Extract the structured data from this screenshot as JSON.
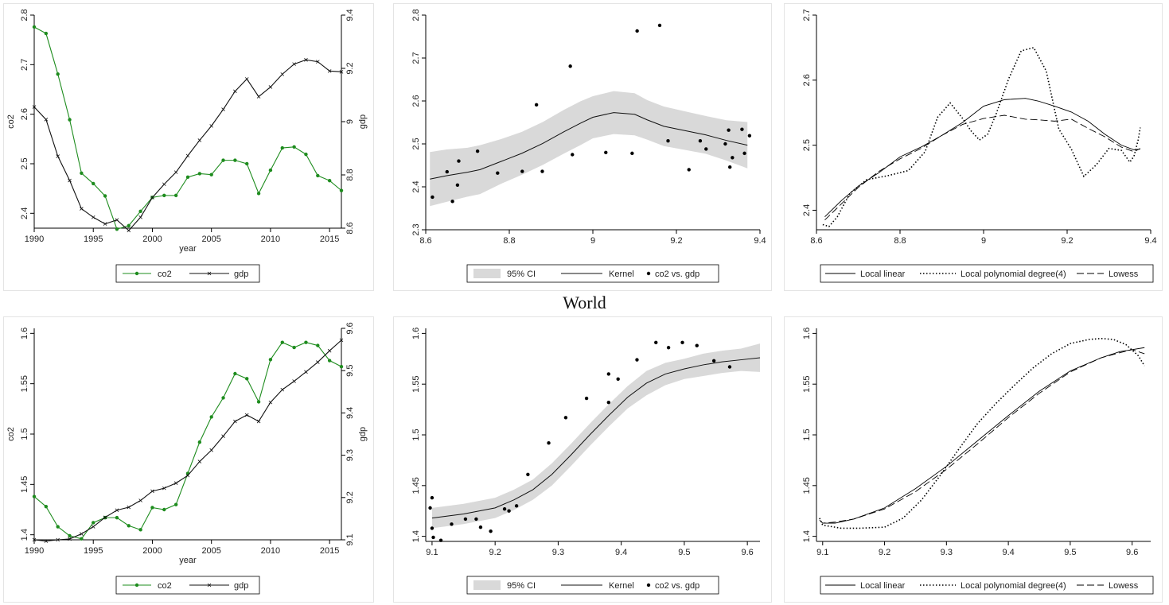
{
  "page_title": "World",
  "colors": {
    "co2": "#1e8c1e",
    "gdp": "#111111",
    "ci_band": "#d9d9d9",
    "fit": "#111111"
  },
  "chart_data": [
    {
      "id": "p1",
      "type": "line",
      "xlabel": "year",
      "ylabel": "co2",
      "y2label": "gdp",
      "xlim": [
        1990,
        2016
      ],
      "ylim": [
        2.37,
        2.8
      ],
      "y2lim": [
        8.6,
        9.4
      ],
      "xticks": [
        "1990",
        "1995",
        "2000",
        "2005",
        "2010",
        "2015"
      ],
      "yticks": [
        "2.4",
        "2.5",
        "2.6",
        "2.7",
        "2.8"
      ],
      "y2ticks": [
        "8.6",
        "8.8",
        "9",
        "9.2",
        "9.4"
      ],
      "x": [
        1990,
        1991,
        1992,
        1993,
        1994,
        1995,
        1996,
        1997,
        1998,
        1999,
        2000,
        2001,
        2002,
        2003,
        2004,
        2005,
        2006,
        2007,
        2008,
        2009,
        2010,
        2011,
        2012,
        2013,
        2014,
        2015,
        2016
      ],
      "series": [
        {
          "name": "co2",
          "axis": "left",
          "marker": "dot",
          "values": [
            2.776,
            2.763,
            2.681,
            2.589,
            2.481,
            2.46,
            2.435,
            2.368,
            2.375,
            2.404,
            2.432,
            2.436,
            2.436,
            2.473,
            2.48,
            2.478,
            2.507,
            2.507,
            2.5,
            2.44,
            2.487,
            2.532,
            2.534,
            2.519,
            2.476,
            2.466,
            2.446
          ]
        },
        {
          "name": "gdp",
          "axis": "right",
          "marker": "x",
          "values": [
            9.055,
            9.008,
            8.87,
            8.779,
            8.673,
            8.641,
            8.616,
            8.631,
            8.591,
            8.641,
            8.715,
            8.765,
            8.81,
            8.872,
            8.93,
            8.984,
            9.046,
            9.114,
            9.16,
            9.094,
            9.13,
            9.178,
            9.216,
            9.232,
            9.225,
            9.19,
            9.187
          ]
        }
      ],
      "legend": [
        "co2",
        "gdp"
      ],
      "legend_position": "bottom"
    },
    {
      "id": "p2",
      "type": "scatter",
      "xlim": [
        8.6,
        9.4
      ],
      "ylim": [
        2.3,
        2.8
      ],
      "xticks": [
        "8.6",
        "8.8",
        "9",
        "9.2",
        "9.4"
      ],
      "yticks": [
        "2.3",
        "2.4",
        "2.5",
        "2.6",
        "2.7",
        "2.8"
      ],
      "kernel_fit": {
        "x": [
          8.61,
          8.65,
          8.7,
          8.73,
          8.78,
          8.83,
          8.88,
          8.93,
          8.97,
          9.0,
          9.05,
          9.1,
          9.13,
          9.17,
          9.22,
          9.27,
          9.32,
          9.37
        ],
        "y": [
          2.418,
          2.426,
          2.434,
          2.44,
          2.459,
          2.478,
          2.501,
          2.528,
          2.548,
          2.562,
          2.573,
          2.569,
          2.556,
          2.541,
          2.531,
          2.521,
          2.508,
          2.497
        ],
        "ci_lower": [
          2.355,
          2.365,
          2.377,
          2.383,
          2.407,
          2.428,
          2.451,
          2.477,
          2.497,
          2.513,
          2.523,
          2.52,
          2.51,
          2.495,
          2.486,
          2.477,
          2.461,
          2.443
        ],
        "ci_upper": [
          2.481,
          2.487,
          2.491,
          2.497,
          2.511,
          2.528,
          2.551,
          2.579,
          2.599,
          2.611,
          2.623,
          2.618,
          2.602,
          2.587,
          2.576,
          2.565,
          2.555,
          2.551
        ]
      },
      "points": {
        "x": [
          8.616,
          8.651,
          8.664,
          8.676,
          8.679,
          8.724,
          8.772,
          8.831,
          8.865,
          8.879,
          8.946,
          8.951,
          9.031,
          9.094,
          9.106,
          9.16,
          9.18,
          9.23,
          9.257,
          9.271,
          9.317,
          9.325,
          9.328,
          9.334,
          9.357,
          9.363,
          9.375
        ],
        "y": [
          2.376,
          2.435,
          2.366,
          2.404,
          2.46,
          2.483,
          2.432,
          2.436,
          2.591,
          2.436,
          2.681,
          2.475,
          2.48,
          2.478,
          2.763,
          2.776,
          2.507,
          2.44,
          2.507,
          2.488,
          2.5,
          2.532,
          2.446,
          2.468,
          2.534,
          2.478,
          2.519
        ]
      },
      "legend": [
        "95% CI",
        "Kernel",
        "co2 vs. gdp"
      ],
      "legend_position": "bottom"
    },
    {
      "id": "p3",
      "type": "line",
      "xlim": [
        8.6,
        9.4
      ],
      "ylim": [
        2.37,
        2.7
      ],
      "xticks": [
        "8.6",
        "8.8",
        "9",
        "9.2",
        "9.4"
      ],
      "yticks": [
        "2.4",
        "2.5",
        "2.6",
        "2.7"
      ],
      "series": [
        {
          "name": "Local linear",
          "dash": "solid",
          "x": [
            8.62,
            8.66,
            8.7,
            8.75,
            8.8,
            8.85,
            8.9,
            8.95,
            9.0,
            9.05,
            9.1,
            9.13,
            9.17,
            9.21,
            9.25,
            9.29,
            9.33,
            9.36,
            9.375
          ],
          "y": [
            2.39,
            2.415,
            2.437,
            2.458,
            2.482,
            2.497,
            2.515,
            2.535,
            2.56,
            2.57,
            2.572,
            2.568,
            2.56,
            2.551,
            2.537,
            2.517,
            2.5,
            2.493,
            2.494
          ]
        },
        {
          "name": "Local polynomial degree(4)",
          "dash": "dot",
          "x": [
            8.615,
            8.63,
            8.65,
            8.68,
            8.72,
            8.77,
            8.82,
            8.86,
            8.89,
            8.92,
            8.95,
            8.97,
            8.99,
            9.01,
            9.03,
            9.06,
            9.09,
            9.12,
            9.15,
            9.18,
            9.21,
            9.24,
            9.27,
            9.3,
            9.33,
            9.35,
            9.36,
            9.37,
            9.375
          ],
          "y": [
            2.378,
            2.375,
            2.39,
            2.426,
            2.447,
            2.453,
            2.461,
            2.49,
            2.543,
            2.565,
            2.541,
            2.522,
            2.508,
            2.517,
            2.548,
            2.602,
            2.645,
            2.65,
            2.614,
            2.525,
            2.494,
            2.452,
            2.47,
            2.495,
            2.492,
            2.474,
            2.483,
            2.508,
            2.527
          ]
        },
        {
          "name": "Lowess",
          "dash": "dash",
          "x": [
            8.62,
            8.66,
            8.7,
            8.75,
            8.8,
            8.85,
            8.9,
            8.95,
            9.0,
            9.05,
            9.1,
            9.13,
            9.17,
            9.21,
            9.25,
            9.29,
            9.33,
            9.36,
            9.375
          ],
          "y": [
            2.385,
            2.41,
            2.435,
            2.46,
            2.479,
            2.495,
            2.515,
            2.532,
            2.541,
            2.546,
            2.54,
            2.539,
            2.537,
            2.54,
            2.526,
            2.513,
            2.497,
            2.49,
            2.495
          ]
        }
      ],
      "legend": [
        "Local linear",
        "Local polynomial degree(4)",
        "Lowess"
      ],
      "legend_position": "bottom"
    },
    {
      "id": "p4",
      "type": "line",
      "xlabel": "year",
      "ylabel": "co2",
      "y2label": "gdp",
      "xlim": [
        1990,
        2016
      ],
      "ylim": [
        1.395,
        1.605
      ],
      "y2lim": [
        9.1,
        9.6
      ],
      "xticks": [
        "1990",
        "1995",
        "2000",
        "2005",
        "2010",
        "2015"
      ],
      "yticks": [
        "1.4",
        "1.45",
        "1.5",
        "1.55",
        "1.6"
      ],
      "y2ticks": [
        "9.1",
        "9.2",
        "9.3",
        "9.4",
        "9.5",
        "9.6"
      ],
      "x": [
        1990,
        1991,
        1992,
        1993,
        1994,
        1995,
        1996,
        1997,
        1998,
        1999,
        2000,
        2001,
        2002,
        2003,
        2004,
        2005,
        2006,
        2007,
        2008,
        2009,
        2010,
        2011,
        2012,
        2013,
        2014,
        2015,
        2016
      ],
      "series": [
        {
          "name": "co2",
          "axis": "left",
          "marker": "dot",
          "values": [
            1.438,
            1.428,
            1.408,
            1.399,
            1.396,
            1.412,
            1.417,
            1.417,
            1.409,
            1.405,
            1.427,
            1.425,
            1.43,
            1.461,
            1.492,
            1.517,
            1.536,
            1.56,
            1.555,
            1.532,
            1.574,
            1.591,
            1.586,
            1.591,
            1.588,
            1.573,
            1.567
          ]
        },
        {
          "name": "gdp",
          "axis": "right",
          "marker": "x",
          "values": [
            9.1,
            9.097,
            9.1,
            9.102,
            9.114,
            9.131,
            9.153,
            9.17,
            9.177,
            9.193,
            9.215,
            9.222,
            9.234,
            9.252,
            9.285,
            9.312,
            9.345,
            9.38,
            9.395,
            9.38,
            9.425,
            9.455,
            9.475,
            9.497,
            9.52,
            9.547,
            9.572
          ]
        }
      ],
      "legend": [
        "co2",
        "gdp"
      ],
      "legend_position": "bottom"
    },
    {
      "id": "p5",
      "type": "scatter",
      "xlim": [
        9.09,
        9.62
      ],
      "ylim": [
        1.395,
        1.605
      ],
      "xticks": [
        "9.1",
        "9.2",
        "9.3",
        "9.4",
        "9.5",
        "9.6"
      ],
      "yticks": [
        "1.4",
        "1.45",
        "1.5",
        "1.55",
        "1.6"
      ],
      "kernel_fit": {
        "x": [
          9.1,
          9.15,
          9.2,
          9.23,
          9.26,
          9.29,
          9.32,
          9.35,
          9.38,
          9.41,
          9.44,
          9.47,
          9.5,
          9.53,
          9.56,
          9.59,
          9.62
        ],
        "y": [
          1.418,
          1.422,
          1.428,
          1.436,
          1.446,
          1.461,
          1.48,
          1.5,
          1.519,
          1.537,
          1.551,
          1.56,
          1.565,
          1.569,
          1.572,
          1.574,
          1.576
        ],
        "ci_lower": [
          1.408,
          1.412,
          1.418,
          1.426,
          1.436,
          1.45,
          1.469,
          1.489,
          1.508,
          1.526,
          1.539,
          1.549,
          1.555,
          1.558,
          1.561,
          1.563,
          1.562
        ],
        "ci_upper": [
          1.428,
          1.432,
          1.438,
          1.446,
          1.456,
          1.472,
          1.491,
          1.511,
          1.53,
          1.548,
          1.563,
          1.571,
          1.575,
          1.58,
          1.583,
          1.585,
          1.59
        ]
      },
      "points": {
        "x": [
          9.1,
          9.097,
          9.1,
          9.102,
          9.114,
          9.131,
          9.153,
          9.17,
          9.177,
          9.193,
          9.215,
          9.222,
          9.234,
          9.252,
          9.285,
          9.312,
          9.345,
          9.38,
          9.395,
          9.38,
          9.425,
          9.455,
          9.475,
          9.497,
          9.52,
          9.547,
          9.572
        ],
        "y": [
          1.438,
          1.428,
          1.408,
          1.399,
          1.396,
          1.412,
          1.417,
          1.417,
          1.409,
          1.405,
          1.427,
          1.425,
          1.43,
          1.461,
          1.492,
          1.517,
          1.536,
          1.56,
          1.555,
          1.532,
          1.574,
          1.591,
          1.586,
          1.591,
          1.588,
          1.573,
          1.567
        ]
      },
      "legend": [
        "95% CI",
        "Kernel",
        "co2 vs. gdp"
      ],
      "legend_position": "bottom"
    },
    {
      "id": "p6",
      "type": "line",
      "xlim": [
        9.09,
        9.63
      ],
      "ylim": [
        1.395,
        1.605
      ],
      "xticks": [
        "9.1",
        "9.2",
        "9.3",
        "9.4",
        "9.5",
        "9.6"
      ],
      "yticks": [
        "1.4",
        "1.45",
        "1.5",
        "1.55",
        "1.6"
      ],
      "series": [
        {
          "name": "Local linear",
          "dash": "solid",
          "x": [
            9.1,
            9.12,
            9.15,
            9.2,
            9.25,
            9.3,
            9.35,
            9.4,
            9.45,
            9.5,
            9.55,
            9.58,
            9.6,
            9.62
          ],
          "y": [
            1.413,
            1.413,
            1.417,
            1.428,
            1.447,
            1.469,
            1.494,
            1.519,
            1.543,
            1.563,
            1.576,
            1.582,
            1.584,
            1.586
          ]
        },
        {
          "name": "Local polynomial degree(4)",
          "dash": "dot",
          "x": [
            9.095,
            9.1,
            9.13,
            9.16,
            9.2,
            9.23,
            9.26,
            9.29,
            9.32,
            9.35,
            9.38,
            9.41,
            9.44,
            9.47,
            9.5,
            9.53,
            9.55,
            9.57,
            9.59,
            9.61,
            9.62
          ],
          "y": [
            1.418,
            1.411,
            1.408,
            1.408,
            1.409,
            1.418,
            1.436,
            1.46,
            1.486,
            1.511,
            1.531,
            1.549,
            1.566,
            1.58,
            1.59,
            1.594,
            1.595,
            1.594,
            1.589,
            1.578,
            1.568
          ]
        },
        {
          "name": "Lowess",
          "dash": "dash",
          "x": [
            9.095,
            9.1,
            9.12,
            9.15,
            9.2,
            9.25,
            9.3,
            9.35,
            9.4,
            9.45,
            9.5,
            9.55,
            9.58,
            9.6,
            9.62
          ],
          "y": [
            1.416,
            1.413,
            1.414,
            1.417,
            1.427,
            1.444,
            1.466,
            1.491,
            1.517,
            1.541,
            1.562,
            1.576,
            1.581,
            1.584,
            1.58
          ]
        }
      ],
      "legend": [
        "Local linear",
        "Local polynomial degree(4)",
        "Lowess"
      ],
      "legend_position": "bottom"
    }
  ]
}
